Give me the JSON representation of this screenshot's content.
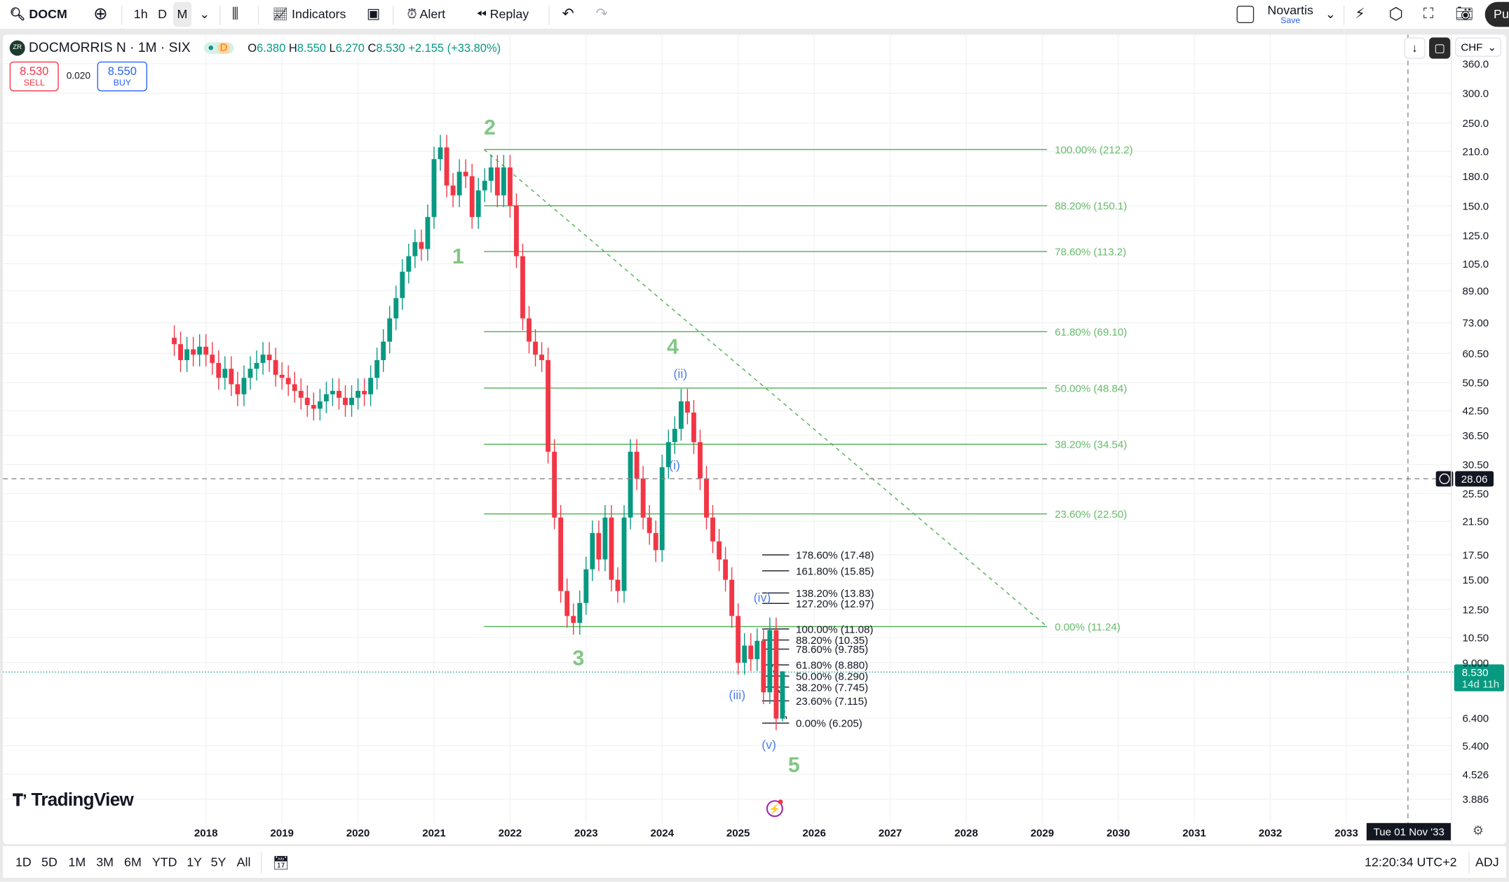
{
  "toolbar": {
    "symbol": "DOCM",
    "intervals": [
      "1h",
      "D",
      "M"
    ],
    "active_interval": "M",
    "indicators": "Indicators",
    "alert": "Alert",
    "replay": "Replay",
    "layout_name": "Novartis",
    "layout_save": "Save",
    "publish": "Pu"
  },
  "legend": {
    "logo": "ZR",
    "title": "DOCMORRIS N · 1M · SIX",
    "badge": "D",
    "o_label": "O",
    "o": "6.380",
    "h_label": "H",
    "h": "8.550",
    "l_label": "L",
    "l": "6.270",
    "c_label": "C",
    "c": "8.530",
    "change": "+2.155 (+33.80%)"
  },
  "trade": {
    "sell_price": "8.530",
    "sell_label": "SELL",
    "spread": "0.020",
    "buy_price": "8.550",
    "buy_label": "BUY"
  },
  "currency": "CHF",
  "colors": {
    "up": "#089981",
    "down": "#F23645",
    "fib": "#4CAF50",
    "fib_text": "#66BB6A",
    "wave_blue": "#4F7FEA",
    "wave_green": "#81C784"
  },
  "price_axis": [
    "360.0",
    "300.0",
    "250.0",
    "210.0",
    "180.0",
    "150.0",
    "125.0",
    "105.0",
    "89.00",
    "73.00",
    "60.50",
    "50.50",
    "42.50",
    "36.50",
    "30.50",
    "25.50",
    "21.50",
    "17.50",
    "15.00",
    "12.50",
    "10.50",
    "9.000",
    "6.400",
    "5.400",
    "4.526",
    "3.886"
  ],
  "crosshair": {
    "price": "28.06",
    "date": "Tue 01 Nov '33"
  },
  "last_price": {
    "price": "8.530",
    "countdown": "14d 11h"
  },
  "time_axis": [
    "2018",
    "2019",
    "2020",
    "2021",
    "2022",
    "2023",
    "2024",
    "2025",
    "2026",
    "2027",
    "2028",
    "2029",
    "2030",
    "2031",
    "2032",
    "2033"
  ],
  "fib_main": [
    {
      "label": "100.00% (212.2)",
      "price": 212.2
    },
    {
      "label": "88.20% (150.1)",
      "price": 150.1
    },
    {
      "label": "78.60% (113.2)",
      "price": 113.2
    },
    {
      "label": "61.80% (69.10)",
      "price": 69.1
    },
    {
      "label": "50.00% (48.84)",
      "price": 48.84
    },
    {
      "label": "38.20% (34.54)",
      "price": 34.54
    },
    {
      "label": "23.60% (22.50)",
      "price": 22.5
    },
    {
      "label": "0.00% (11.24)",
      "price": 11.24
    }
  ],
  "fib_ext": [
    {
      "label": "178.60% (17.48)",
      "price": 17.48
    },
    {
      "label": "161.80% (15.85)",
      "price": 15.85
    },
    {
      "label": "138.20% (13.83)",
      "price": 13.83
    },
    {
      "label": "127.20% (12.97)",
      "price": 12.97
    },
    {
      "label": "100.00% (11.08)",
      "price": 11.08
    },
    {
      "label": "88.20% (10.35)",
      "price": 10.35
    },
    {
      "label": "78.60% (9.785)",
      "price": 9.785
    },
    {
      "label": "61.80% (8.880)",
      "price": 8.88
    },
    {
      "label": "50.00% (8.290)",
      "price": 8.29
    },
    {
      "label": "38.20% (7.745)",
      "price": 7.745
    },
    {
      "label": "23.60% (7.115)",
      "price": 7.115
    },
    {
      "label": "0.00% (6.205)",
      "price": 6.205
    }
  ],
  "waves": {
    "major": [
      "1",
      "2",
      "3",
      "4",
      "5"
    ],
    "minor": [
      "(i)",
      "(ii)",
      "(iii)",
      "(iv)",
      "(v)"
    ]
  },
  "watermark": "TradingView",
  "bottom": {
    "ranges": [
      "1D",
      "5D",
      "1M",
      "3M",
      "6M",
      "YTD",
      "1Y",
      "5Y",
      "All"
    ],
    "clock": "12:20:34 UTC+2",
    "adj": "ADJ"
  },
  "chart_data": {
    "type": "candlestick",
    "scale": "log",
    "start_month": "2017-08",
    "interval": "1M",
    "closes": [
      64,
      58,
      62,
      60,
      63,
      60,
      57,
      52,
      55,
      50,
      47,
      52,
      55,
      57,
      60,
      58,
      53,
      52,
      50,
      48,
      46,
      44,
      43,
      45,
      47,
      48,
      46,
      44,
      46,
      48,
      47,
      52,
      58,
      65,
      75,
      85,
      100,
      110,
      120,
      115,
      140,
      200,
      215,
      170,
      160,
      185,
      180,
      140,
      165,
      175,
      190,
      160,
      190,
      150,
      110,
      75,
      65,
      60,
      58,
      33,
      22,
      14,
      12,
      11.5,
      13,
      16,
      20,
      17,
      22,
      15,
      14,
      22,
      33,
      28,
      22,
      20,
      18,
      30,
      35,
      38,
      45,
      42,
      35,
      28,
      22,
      19,
      17,
      15,
      12,
      9,
      10,
      9.2,
      10.3,
      7.5,
      11,
      6.38,
      8.53
    ],
    "last_candle": {
      "open": 6.38,
      "high": 8.55,
      "low": 6.27,
      "close": 8.53
    },
    "ylim": [
      3.886,
      360
    ]
  }
}
